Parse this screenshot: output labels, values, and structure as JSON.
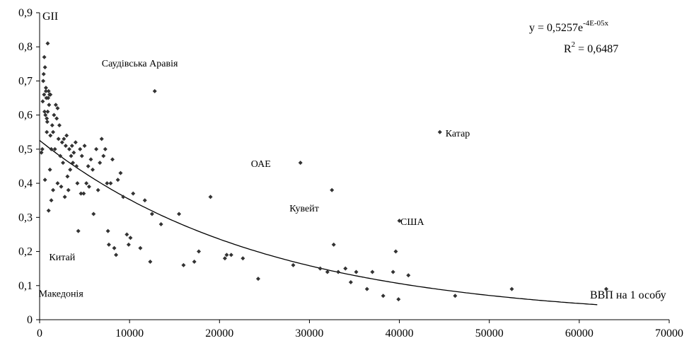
{
  "chart_data": {
    "type": "scatter",
    "xlabel": "ВВП на 1 особу",
    "ylabel": "GII",
    "xlim": [
      0,
      70000
    ],
    "ylim": [
      0,
      0.9
    ],
    "x_ticks": [
      0,
      10000,
      20000,
      30000,
      40000,
      50000,
      60000,
      70000
    ],
    "y_ticks": [
      0,
      0.1,
      0.2,
      0.3,
      0.4,
      0.5,
      0.6,
      0.7,
      0.8,
      0.9
    ],
    "x_tick_labels": [
      "0",
      "10000",
      "20000",
      "30000",
      "40000",
      "50000",
      "60000",
      "70000"
    ],
    "y_tick_labels": [
      "0",
      "0,1",
      "0,2",
      "0,3",
      "0,4",
      "0,5",
      "0,6",
      "0,7",
      "0,8",
      "0,9"
    ],
    "grid": false,
    "marker_color": "#333333",
    "trendline": {
      "type": "exponential",
      "a": 0.5257,
      "b": -4e-05,
      "x_range": [
        0,
        62000
      ],
      "equation_prefix": "y = 0,5257e",
      "equation_exponent": "-4E-05x",
      "r2_prefix": "R",
      "r2_exponent": "2",
      "r2_suffix": " = 0,6487"
    },
    "annotations": [
      {
        "text": "Саудівська Аравія",
        "x": 12800,
        "y": 0.67
      },
      {
        "text": "ОАЕ",
        "x": 29000,
        "y": 0.46
      },
      {
        "text": "Катар",
        "x": 44500,
        "y": 0.55
      },
      {
        "text": "Кувейт",
        "x": 32500,
        "y": 0.38
      },
      {
        "text": "США",
        "x": 39800,
        "y": 0.29
      },
      {
        "text": "Китай",
        "x": 2000,
        "y": 0.22
      },
      {
        "text": "Македонія",
        "x": 3200,
        "y": 0.15
      }
    ],
    "points": [
      [
        200,
        0.49
      ],
      [
        300,
        0.5
      ],
      [
        350,
        0.64
      ],
      [
        400,
        0.7
      ],
      [
        450,
        0.72
      ],
      [
        500,
        0.66
      ],
      [
        520,
        0.77
      ],
      [
        550,
        0.61
      ],
      [
        600,
        0.74
      ],
      [
        600,
        0.41
      ],
      [
        650,
        0.6
      ],
      [
        700,
        0.68
      ],
      [
        700,
        0.67
      ],
      [
        750,
        0.65
      ],
      [
        800,
        0.55
      ],
      [
        800,
        0.59
      ],
      [
        850,
        0.58
      ],
      [
        900,
        0.81
      ],
      [
        900,
        0.61
      ],
      [
        950,
        0.65
      ],
      [
        1000,
        0.67
      ],
      [
        1000,
        0.32
      ],
      [
        1050,
        0.63
      ],
      [
        1100,
        0.66
      ],
      [
        1150,
        0.44
      ],
      [
        1200,
        0.54
      ],
      [
        1200,
        0.66
      ],
      [
        1300,
        0.5
      ],
      [
        1300,
        0.35
      ],
      [
        1400,
        0.57
      ],
      [
        1500,
        0.55
      ],
      [
        1500,
        0.38
      ],
      [
        1600,
        0.6
      ],
      [
        1700,
        0.5
      ],
      [
        1800,
        0.63
      ],
      [
        1900,
        0.59
      ],
      [
        2000,
        0.62
      ],
      [
        2000,
        0.4
      ],
      [
        2100,
        0.53
      ],
      [
        2200,
        0.57
      ],
      [
        2300,
        0.48
      ],
      [
        2400,
        0.39
      ],
      [
        2500,
        0.52
      ],
      [
        2600,
        0.46
      ],
      [
        2700,
        0.53
      ],
      [
        2800,
        0.36
      ],
      [
        2900,
        0.51
      ],
      [
        3000,
        0.54
      ],
      [
        3100,
        0.42
      ],
      [
        3200,
        0.38
      ],
      [
        3300,
        0.5
      ],
      [
        3400,
        0.44
      ],
      [
        3500,
        0.48
      ],
      [
        3600,
        0.51
      ],
      [
        3700,
        0.46
      ],
      [
        3800,
        0.49
      ],
      [
        4000,
        0.52
      ],
      [
        4100,
        0.45
      ],
      [
        4200,
        0.4
      ],
      [
        4300,
        0.26
      ],
      [
        4500,
        0.5
      ],
      [
        4600,
        0.37
      ],
      [
        4700,
        0.48
      ],
      [
        4900,
        0.37
      ],
      [
        5000,
        0.51
      ],
      [
        5200,
        0.4
      ],
      [
        5400,
        0.45
      ],
      [
        5500,
        0.39
      ],
      [
        5700,
        0.47
      ],
      [
        5900,
        0.44
      ],
      [
        6000,
        0.31
      ],
      [
        6300,
        0.5
      ],
      [
        6500,
        0.38
      ],
      [
        6700,
        0.46
      ],
      [
        6900,
        0.53
      ],
      [
        7100,
        0.48
      ],
      [
        7300,
        0.5
      ],
      [
        7500,
        0.4
      ],
      [
        7600,
        0.26
      ],
      [
        7700,
        0.22
      ],
      [
        7900,
        0.4
      ],
      [
        8100,
        0.47
      ],
      [
        8300,
        0.21
      ],
      [
        8500,
        0.19
      ],
      [
        8700,
        0.41
      ],
      [
        9000,
        0.43
      ],
      [
        9300,
        0.36
      ],
      [
        9700,
        0.25
      ],
      [
        9900,
        0.22
      ],
      [
        10100,
        0.24
      ],
      [
        10400,
        0.37
      ],
      [
        11200,
        0.21
      ],
      [
        11700,
        0.35
      ],
      [
        12300,
        0.17
      ],
      [
        12500,
        0.31
      ],
      [
        12800,
        0.67
      ],
      [
        13500,
        0.28
      ],
      [
        15500,
        0.31
      ],
      [
        16000,
        0.16
      ],
      [
        17200,
        0.17
      ],
      [
        17700,
        0.2
      ],
      [
        19000,
        0.36
      ],
      [
        20600,
        0.18
      ],
      [
        20800,
        0.19
      ],
      [
        21300,
        0.19
      ],
      [
        22600,
        0.18
      ],
      [
        24300,
        0.12
      ],
      [
        28200,
        0.16
      ],
      [
        29000,
        0.46
      ],
      [
        31200,
        0.15
      ],
      [
        32000,
        0.14
      ],
      [
        32500,
        0.38
      ],
      [
        32700,
        0.22
      ],
      [
        33200,
        0.14
      ],
      [
        34000,
        0.15
      ],
      [
        34600,
        0.11
      ],
      [
        35200,
        0.14
      ],
      [
        36400,
        0.09
      ],
      [
        37000,
        0.14
      ],
      [
        38200,
        0.07
      ],
      [
        39300,
        0.14
      ],
      [
        39600,
        0.2
      ],
      [
        39900,
        0.06
      ],
      [
        40000,
        0.29
      ],
      [
        41000,
        0.13
      ],
      [
        44500,
        0.55
      ],
      [
        46200,
        0.07
      ],
      [
        52500,
        0.09
      ],
      [
        63000,
        0.09
      ]
    ]
  }
}
